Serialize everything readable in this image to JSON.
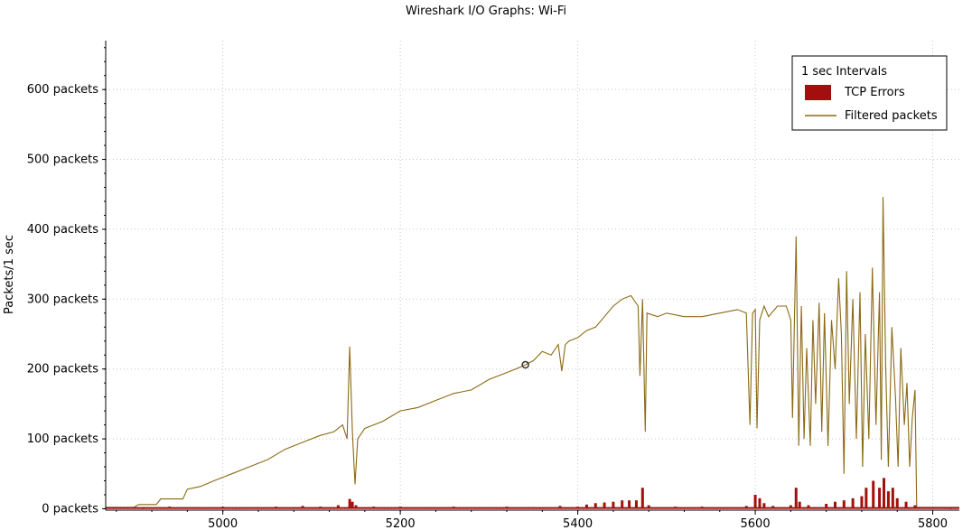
{
  "chart_data": {
    "type": "line",
    "title": "Wireshark I/O Graphs: Wi-Fi",
    "xlabel": "",
    "ylabel": "Packets/1 sec",
    "xlim": [
      4868,
      5830
    ],
    "ylim": [
      -2,
      670
    ],
    "x_ticks": [
      5000,
      5200,
      5400,
      5600,
      5800
    ],
    "x_tick_labels": [
      "5000",
      "5200",
      "5400",
      "5600",
      "5800"
    ],
    "y_ticks": [
      0,
      100,
      200,
      300,
      400,
      500,
      600
    ],
    "y_tick_labels": [
      "0 packets",
      "100 packets",
      "200 packets",
      "300 packets",
      "400 packets",
      "500 packets",
      "600 packets"
    ],
    "grid": true,
    "legend": {
      "position": "top-right",
      "title": "1 sec Intervals",
      "entries": [
        {
          "label": "TCP Errors",
          "kind": "bar",
          "color": "#a50e0e"
        },
        {
          "label": "Filtered packets",
          "kind": "line",
          "color": "#8b6914"
        }
      ]
    },
    "series": [
      {
        "name": "Filtered packets",
        "kind": "line",
        "color": "#8b6914",
        "points": [
          [
            4868,
            2
          ],
          [
            4900,
            2
          ],
          [
            4905,
            6
          ],
          [
            4925,
            6
          ],
          [
            4930,
            14
          ],
          [
            4955,
            14
          ],
          [
            4960,
            28
          ],
          [
            4975,
            32
          ],
          [
            4990,
            40
          ],
          [
            5000,
            45
          ],
          [
            5010,
            50
          ],
          [
            5030,
            60
          ],
          [
            5050,
            70
          ],
          [
            5070,
            85
          ],
          [
            5090,
            95
          ],
          [
            5110,
            105
          ],
          [
            5125,
            110
          ],
          [
            5135,
            120
          ],
          [
            5140,
            100
          ],
          [
            5143,
            232
          ],
          [
            5146,
            110
          ],
          [
            5149,
            35
          ],
          [
            5152,
            100
          ],
          [
            5160,
            115
          ],
          [
            5180,
            125
          ],
          [
            5200,
            140
          ],
          [
            5220,
            145
          ],
          [
            5240,
            155
          ],
          [
            5260,
            165
          ],
          [
            5280,
            170
          ],
          [
            5300,
            185
          ],
          [
            5320,
            195
          ],
          [
            5330,
            200
          ],
          [
            5341,
            206
          ],
          [
            5350,
            212
          ],
          [
            5360,
            225
          ],
          [
            5370,
            220
          ],
          [
            5378,
            235
          ],
          [
            5382,
            197
          ],
          [
            5386,
            235
          ],
          [
            5390,
            240
          ],
          [
            5400,
            245
          ],
          [
            5410,
            255
          ],
          [
            5420,
            260
          ],
          [
            5430,
            275
          ],
          [
            5440,
            290
          ],
          [
            5450,
            300
          ],
          [
            5460,
            305
          ],
          [
            5468,
            290
          ],
          [
            5470,
            190
          ],
          [
            5473,
            300
          ],
          [
            5476,
            110
          ],
          [
            5478,
            280
          ],
          [
            5490,
            275
          ],
          [
            5500,
            280
          ],
          [
            5520,
            275
          ],
          [
            5540,
            275
          ],
          [
            5560,
            280
          ],
          [
            5580,
            285
          ],
          [
            5590,
            280
          ],
          [
            5594,
            120
          ],
          [
            5597,
            280
          ],
          [
            5600,
            285
          ],
          [
            5602,
            115
          ],
          [
            5605,
            270
          ],
          [
            5610,
            290
          ],
          [
            5615,
            275
          ],
          [
            5625,
            290
          ],
          [
            5635,
            290
          ],
          [
            5640,
            270
          ],
          [
            5642,
            130
          ],
          [
            5646,
            390
          ],
          [
            5649,
            90
          ],
          [
            5652,
            290
          ],
          [
            5655,
            100
          ],
          [
            5658,
            230
          ],
          [
            5662,
            90
          ],
          [
            5665,
            270
          ],
          [
            5668,
            150
          ],
          [
            5672,
            295
          ],
          [
            5675,
            110
          ],
          [
            5678,
            280
          ],
          [
            5682,
            90
          ],
          [
            5686,
            270
          ],
          [
            5690,
            200
          ],
          [
            5694,
            330
          ],
          [
            5697,
            250
          ],
          [
            5700,
            50
          ],
          [
            5703,
            340
          ],
          [
            5706,
            150
          ],
          [
            5710,
            300
          ],
          [
            5714,
            100
          ],
          [
            5718,
            310
          ],
          [
            5721,
            60
          ],
          [
            5724,
            250
          ],
          [
            5728,
            100
          ],
          [
            5732,
            345
          ],
          [
            5736,
            120
          ],
          [
            5740,
            310
          ],
          [
            5742,
            70
          ],
          [
            5744,
            446
          ],
          [
            5747,
            200
          ],
          [
            5750,
            60
          ],
          [
            5754,
            260
          ],
          [
            5758,
            160
          ],
          [
            5761,
            60
          ],
          [
            5764,
            230
          ],
          [
            5768,
            120
          ],
          [
            5771,
            180
          ],
          [
            5774,
            60
          ],
          [
            5777,
            130
          ],
          [
            5780,
            170
          ],
          [
            5782,
            2
          ],
          [
            5830,
            2
          ]
        ]
      },
      {
        "name": "TCP Errors",
        "kind": "bar",
        "color": "#a50e0e",
        "points": [
          [
            4880,
            2
          ],
          [
            4910,
            1
          ],
          [
            4940,
            3
          ],
          [
            4970,
            2
          ],
          [
            5000,
            3
          ],
          [
            5030,
            2
          ],
          [
            5060,
            3
          ],
          [
            5090,
            4
          ],
          [
            5110,
            3
          ],
          [
            5130,
            5
          ],
          [
            5143,
            14
          ],
          [
            5146,
            10
          ],
          [
            5150,
            5
          ],
          [
            5170,
            3
          ],
          [
            5200,
            3
          ],
          [
            5230,
            2
          ],
          [
            5260,
            3
          ],
          [
            5290,
            2
          ],
          [
            5320,
            3
          ],
          [
            5350,
            2
          ],
          [
            5380,
            4
          ],
          [
            5400,
            3
          ],
          [
            5410,
            6
          ],
          [
            5420,
            8
          ],
          [
            5430,
            9
          ],
          [
            5440,
            10
          ],
          [
            5450,
            12
          ],
          [
            5458,
            12
          ],
          [
            5466,
            12
          ],
          [
            5473,
            30
          ],
          [
            5480,
            5
          ],
          [
            5510,
            3
          ],
          [
            5540,
            3
          ],
          [
            5570,
            2
          ],
          [
            5590,
            4
          ],
          [
            5600,
            20
          ],
          [
            5605,
            15
          ],
          [
            5610,
            8
          ],
          [
            5620,
            4
          ],
          [
            5640,
            5
          ],
          [
            5646,
            30
          ],
          [
            5650,
            10
          ],
          [
            5660,
            5
          ],
          [
            5680,
            7
          ],
          [
            5690,
            10
          ],
          [
            5700,
            12
          ],
          [
            5710,
            15
          ],
          [
            5720,
            18
          ],
          [
            5725,
            30
          ],
          [
            5733,
            40
          ],
          [
            5740,
            30
          ],
          [
            5745,
            44
          ],
          [
            5750,
            25
          ],
          [
            5755,
            30
          ],
          [
            5760,
            15
          ],
          [
            5770,
            10
          ],
          [
            5780,
            5
          ],
          [
            5800,
            2
          ],
          [
            5820,
            1
          ]
        ]
      }
    ],
    "marker": {
      "x": 5341,
      "y": 206
    }
  }
}
